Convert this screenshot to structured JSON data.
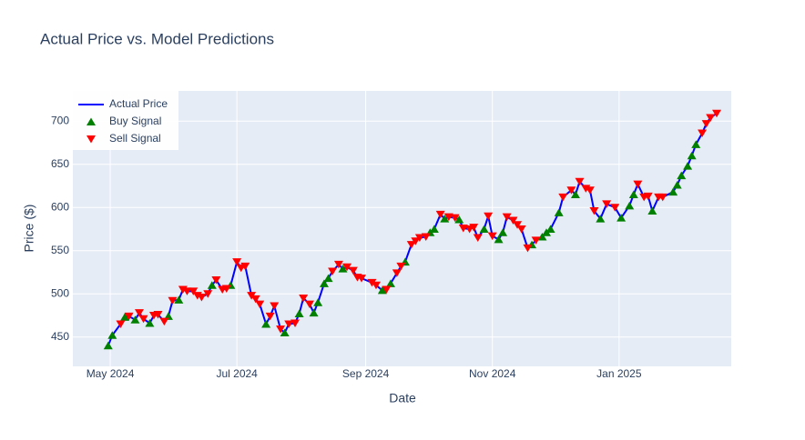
{
  "chart_data": {
    "type": "line",
    "title": "Actual Price vs. Model Predictions",
    "x_label": "Date",
    "y_label": "Price ($)",
    "xlim": [
      "2024-04-13",
      "2025-02-24"
    ],
    "xticks": [
      {
        "value": "2024-05-01",
        "label": "May 2024"
      },
      {
        "value": "2024-07-01",
        "label": "Jul 2024"
      },
      {
        "value": "2024-09-01",
        "label": "Sep 2024"
      },
      {
        "value": "2024-11-01",
        "label": "Nov 2024"
      },
      {
        "value": "2025-01-01",
        "label": "Jan 2025"
      }
    ],
    "ylim": [
      416,
      735
    ],
    "yticks": [
      450,
      500,
      550,
      600,
      650,
      700
    ],
    "grid": true,
    "legend_position": "top-left",
    "series": [
      {
        "name": "Actual Price",
        "color": "#0000ff",
        "mode": "line",
        "x": [
          "2024-04-30",
          "2024-05-02",
          "2024-05-06",
          "2024-05-08",
          "2024-05-10",
          "2024-05-13",
          "2024-05-15",
          "2024-05-17",
          "2024-05-20",
          "2024-05-22",
          "2024-05-24",
          "2024-05-27",
          "2024-05-29",
          "2024-05-31",
          "2024-06-03",
          "2024-06-05",
          "2024-06-07",
          "2024-06-10",
          "2024-06-12",
          "2024-06-14",
          "2024-06-17",
          "2024-06-19",
          "2024-06-21",
          "2024-06-24",
          "2024-06-26",
          "2024-06-28",
          "2024-07-01",
          "2024-07-03",
          "2024-07-05",
          "2024-07-08",
          "2024-07-10",
          "2024-07-12",
          "2024-07-15",
          "2024-07-17",
          "2024-07-19",
          "2024-07-22",
          "2024-07-24",
          "2024-07-26",
          "2024-07-29",
          "2024-07-31",
          "2024-08-02",
          "2024-08-05",
          "2024-08-07",
          "2024-08-09",
          "2024-08-12",
          "2024-08-14",
          "2024-08-16",
          "2024-08-19",
          "2024-08-21",
          "2024-08-23",
          "2024-08-26",
          "2024-08-28",
          "2024-08-30",
          "2024-09-04",
          "2024-09-06",
          "2024-09-09",
          "2024-09-11",
          "2024-09-13",
          "2024-09-16",
          "2024-09-18",
          "2024-09-20",
          "2024-09-23",
          "2024-09-25",
          "2024-09-27",
          "2024-09-30",
          "2024-10-02",
          "2024-10-04",
          "2024-10-07",
          "2024-10-09",
          "2024-10-11",
          "2024-10-14",
          "2024-10-16",
          "2024-10-18",
          "2024-10-21",
          "2024-10-23",
          "2024-10-25",
          "2024-10-28",
          "2024-10-30",
          "2024-11-01",
          "2024-11-04",
          "2024-11-06",
          "2024-11-08",
          "2024-11-11",
          "2024-11-13",
          "2024-11-15",
          "2024-11-18",
          "2024-11-20",
          "2024-11-22",
          "2024-11-25",
          "2024-11-27",
          "2024-11-29",
          "2024-12-03",
          "2024-12-05",
          "2024-12-09",
          "2024-12-11",
          "2024-12-13",
          "2024-12-16",
          "2024-12-18",
          "2024-12-20",
          "2024-12-23",
          "2024-12-26",
          "2024-12-30",
          "2025-01-02",
          "2025-01-06",
          "2025-01-08",
          "2025-01-10",
          "2025-01-13",
          "2025-01-15",
          "2025-01-17",
          "2025-01-20",
          "2025-01-22",
          "2025-01-27",
          "2025-01-29",
          "2025-01-31",
          "2025-02-03",
          "2025-02-05",
          "2025-02-07",
          "2025-02-10",
          "2025-02-12",
          "2025-02-14",
          "2025-02-17"
        ],
        "values": [
          440,
          452,
          465,
          473,
          474,
          470,
          478,
          471,
          466,
          475,
          476,
          468,
          474,
          492,
          493,
          505,
          503,
          503,
          498,
          496,
          500,
          510,
          516,
          505,
          506,
          510,
          537,
          530,
          532,
          498,
          494,
          488,
          465,
          474,
          486,
          459,
          455,
          465,
          466,
          477,
          495,
          488,
          478,
          490,
          512,
          518,
          526,
          534,
          529,
          531,
          527,
          519,
          518,
          513,
          510,
          504,
          505,
          512,
          524,
          532,
          537,
          557,
          561,
          565,
          566,
          571,
          575,
          592,
          587,
          589,
          588,
          586,
          576,
          575,
          577,
          565,
          575,
          590,
          567,
          563,
          571,
          589,
          585,
          580,
          575,
          553,
          557,
          562,
          566,
          571,
          575,
          594,
          612,
          620,
          615,
          630,
          622,
          620,
          596,
          587,
          604,
          600,
          588,
          602,
          615,
          627,
          612,
          613,
          596,
          612,
          612,
          618,
          626,
          637,
          648,
          660,
          673,
          686,
          697,
          704,
          709
        ]
      },
      {
        "name": "Buy Signal",
        "color": "#008000",
        "mode": "markers",
        "symbol": "triangle-up",
        "x": [
          "2024-04-30",
          "2024-05-02",
          "2024-05-08",
          "2024-05-13",
          "2024-05-20",
          "2024-05-29",
          "2024-06-03",
          "2024-06-19",
          "2024-06-28",
          "2024-07-15",
          "2024-07-24",
          "2024-07-31",
          "2024-08-07",
          "2024-08-09",
          "2024-08-12",
          "2024-08-14",
          "2024-08-21",
          "2024-09-09",
          "2024-09-13",
          "2024-09-20",
          "2024-10-02",
          "2024-10-04",
          "2024-10-09",
          "2024-10-16",
          "2024-10-28",
          "2024-11-04",
          "2024-11-06",
          "2024-11-20",
          "2024-11-25",
          "2024-11-27",
          "2024-11-29",
          "2024-12-03",
          "2024-12-11",
          "2024-12-23",
          "2025-01-02",
          "2025-01-06",
          "2025-01-08",
          "2025-01-17",
          "2025-01-27",
          "2025-01-29",
          "2025-01-31",
          "2025-02-03",
          "2025-02-05",
          "2025-02-07"
        ],
        "values": [
          440,
          452,
          473,
          470,
          466,
          474,
          493,
          510,
          510,
          465,
          455,
          477,
          478,
          490,
          512,
          518,
          529,
          504,
          512,
          537,
          571,
          575,
          587,
          586,
          575,
          563,
          571,
          557,
          566,
          571,
          575,
          594,
          615,
          587,
          588,
          602,
          615,
          596,
          618,
          626,
          637,
          648,
          660,
          673
        ]
      },
      {
        "name": "Sell Signal",
        "color": "#ff0000",
        "mode": "markers",
        "symbol": "triangle-down",
        "x": [
          "2024-05-06",
          "2024-05-10",
          "2024-05-15",
          "2024-05-17",
          "2024-05-22",
          "2024-05-24",
          "2024-05-27",
          "2024-05-31",
          "2024-06-05",
          "2024-06-07",
          "2024-06-10",
          "2024-06-12",
          "2024-06-14",
          "2024-06-17",
          "2024-06-21",
          "2024-06-24",
          "2024-06-26",
          "2024-07-01",
          "2024-07-03",
          "2024-07-05",
          "2024-07-08",
          "2024-07-10",
          "2024-07-12",
          "2024-07-17",
          "2024-07-19",
          "2024-07-22",
          "2024-07-26",
          "2024-07-29",
          "2024-08-02",
          "2024-08-05",
          "2024-08-16",
          "2024-08-19",
          "2024-08-23",
          "2024-08-26",
          "2024-08-28",
          "2024-08-30",
          "2024-09-04",
          "2024-09-06",
          "2024-09-11",
          "2024-09-16",
          "2024-09-18",
          "2024-09-23",
          "2024-09-25",
          "2024-09-27",
          "2024-09-30",
          "2024-10-07",
          "2024-10-11",
          "2024-10-14",
          "2024-10-18",
          "2024-10-21",
          "2024-10-23",
          "2024-10-25",
          "2024-10-30",
          "2024-11-01",
          "2024-11-08",
          "2024-11-11",
          "2024-11-13",
          "2024-11-15",
          "2024-11-18",
          "2024-11-22",
          "2024-12-05",
          "2024-12-09",
          "2024-12-13",
          "2024-12-16",
          "2024-12-18",
          "2024-12-20",
          "2024-12-26",
          "2024-12-30",
          "2025-01-10",
          "2025-01-13",
          "2025-01-15",
          "2025-01-20",
          "2025-01-22",
          "2025-02-10",
          "2025-02-12",
          "2025-02-14",
          "2025-02-17"
        ],
        "values": [
          465,
          474,
          478,
          471,
          475,
          476,
          468,
          492,
          505,
          503,
          503,
          498,
          496,
          500,
          516,
          505,
          506,
          537,
          530,
          532,
          498,
          494,
          488,
          474,
          486,
          459,
          465,
          466,
          495,
          488,
          526,
          534,
          531,
          527,
          519,
          518,
          513,
          510,
          505,
          524,
          532,
          557,
          561,
          565,
          566,
          592,
          589,
          588,
          576,
          575,
          577,
          565,
          590,
          567,
          589,
          585,
          580,
          575,
          553,
          562,
          612,
          620,
          630,
          622,
          620,
          596,
          604,
          600,
          627,
          612,
          613,
          612,
          612,
          686,
          697,
          704,
          709
        ]
      }
    ]
  }
}
